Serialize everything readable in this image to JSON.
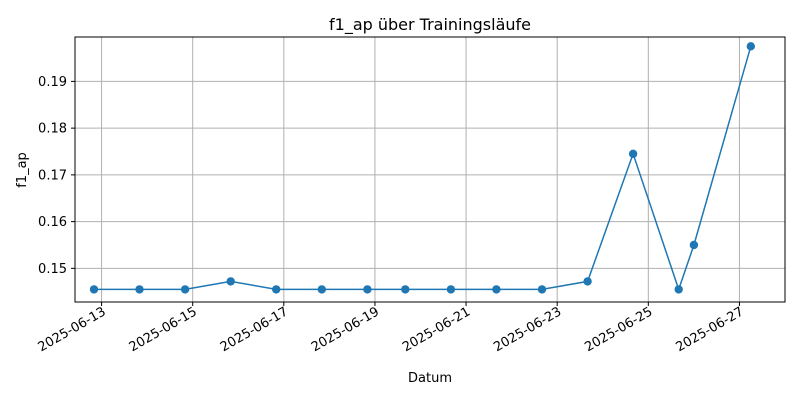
{
  "chart_data": {
    "type": "line",
    "title": "f1_ap über Trainingsläufe",
    "xlabel": "Datum",
    "ylabel": "f1_ap",
    "x_ticks": [
      "2025-06-13",
      "2025-06-15",
      "2025-06-17",
      "2025-06-19",
      "2025-06-21",
      "2025-06-23",
      "2025-06-25",
      "2025-06-27"
    ],
    "y_ticks": [
      "0.15",
      "0.16",
      "0.17",
      "0.18",
      "0.19"
    ],
    "xlim": [
      "2025-06-12T10:00",
      "2025-06-28T00:00"
    ],
    "ylim": [
      0.1428,
      0.1995
    ],
    "grid": true,
    "color": "#1f77b4",
    "series": [
      {
        "x": [
          "2025-06-12T20:00",
          "2025-06-13T20:00",
          "2025-06-14T20:00",
          "2025-06-15T20:00",
          "2025-06-16T20:00",
          "2025-06-17T20:00",
          "2025-06-18T20:00",
          "2025-06-19T16:00",
          "2025-06-20T16:00",
          "2025-06-21T16:00",
          "2025-06-22T16:00",
          "2025-06-23T16:00",
          "2025-06-24T16:00",
          "2025-06-25T16:00",
          "2025-06-26T00:00",
          "2025-06-27T06:00"
        ],
        "y": [
          0.1455,
          0.1455,
          0.1455,
          0.1472,
          0.1455,
          0.1455,
          0.1455,
          0.1455,
          0.1455,
          0.1455,
          0.1455,
          0.1472,
          0.1745,
          0.1455,
          0.155,
          0.1975
        ]
      }
    ]
  }
}
